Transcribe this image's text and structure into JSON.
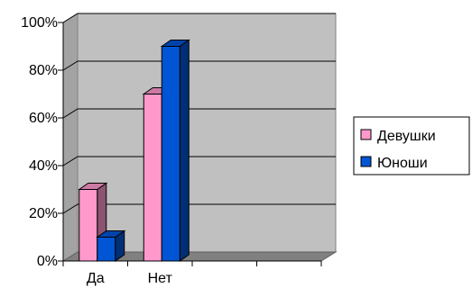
{
  "chart_data": {
    "type": "bar",
    "style": "3d-clustered-column",
    "categories": [
      "Да",
      "Нет",
      "",
      ""
    ],
    "series": [
      {
        "name": "Девушки",
        "values": [
          30,
          70,
          null,
          null
        ],
        "color": "#ff99cc"
      },
      {
        "name": "Юноши",
        "values": [
          10,
          90,
          null,
          null
        ],
        "color": "#0055d4"
      }
    ],
    "y_ticks": [
      "0%",
      "20%",
      "40%",
      "60%",
      "80%",
      "100%"
    ],
    "ylim": [
      0,
      100
    ],
    "grid": true,
    "legend_position": "right",
    "wall_color": "#c0c0c0"
  }
}
